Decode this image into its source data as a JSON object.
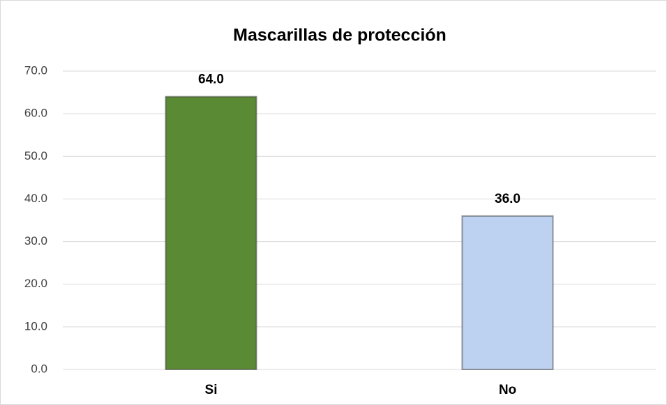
{
  "chart_data": {
    "type": "bar",
    "title": "Mascarillas de protección",
    "categories": [
      "Si",
      "No"
    ],
    "values": [
      64,
      36
    ],
    "value_labels": [
      "64.0",
      "36.0"
    ],
    "colors": [
      "#5b8a35",
      "#bdd1f1"
    ],
    "ylim": [
      0,
      70
    ],
    "yticks": [
      {
        "value": 0,
        "label": "0.0"
      },
      {
        "value": 10,
        "label": "10.0"
      },
      {
        "value": 20,
        "label": "20.0"
      },
      {
        "value": 30,
        "label": "30.0"
      },
      {
        "value": 40,
        "label": "40.0"
      },
      {
        "value": 50,
        "label": "50.0"
      },
      {
        "value": 60,
        "label": "60.0"
      },
      {
        "value": 70,
        "label": "70.0"
      }
    ],
    "grid": true
  }
}
